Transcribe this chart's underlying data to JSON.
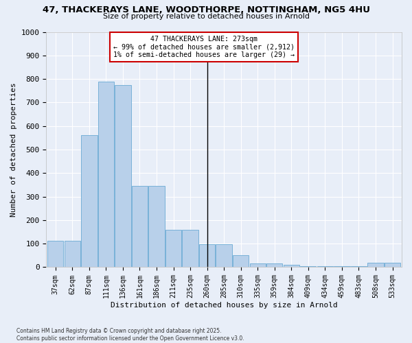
{
  "title_line1": "47, THACKERAYS LANE, WOODTHORPE, NOTTINGHAM, NG5 4HU",
  "title_line2": "Size of property relative to detached houses in Arnold",
  "xlabel": "Distribution of detached houses by size in Arnold",
  "ylabel": "Number of detached properties",
  "bar_labels": [
    "37sqm",
    "62sqm",
    "87sqm",
    "111sqm",
    "136sqm",
    "161sqm",
    "186sqm",
    "211sqm",
    "235sqm",
    "260sqm",
    "285sqm",
    "310sqm",
    "335sqm",
    "359sqm",
    "384sqm",
    "409sqm",
    "434sqm",
    "459sqm",
    "483sqm",
    "508sqm",
    "533sqm"
  ],
  "bar_values": [
    112,
    112,
    560,
    790,
    775,
    345,
    345,
    160,
    160,
    97,
    97,
    50,
    15,
    15,
    10,
    5,
    5,
    5,
    5,
    20,
    20
  ],
  "bar_color": "#b8d0ea",
  "bar_edge_color": "#6aaad4",
  "bg_color": "#e8eef8",
  "grid_color": "#ffffff",
  "vline_index": 9,
  "vline_color": "#000000",
  "annotation_text": "47 THACKERAYS LANE: 273sqm\n← 99% of detached houses are smaller (2,912)\n1% of semi-detached houses are larger (29) →",
  "annotation_box_color": "#ffffff",
  "annotation_box_edge": "#cc0000",
  "ylim": [
    0,
    1000
  ],
  "yticks": [
    0,
    100,
    200,
    300,
    400,
    500,
    600,
    700,
    800,
    900,
    1000
  ],
  "fig_bg": "#e8eef8",
  "footer_line1": "Contains HM Land Registry data © Crown copyright and database right 2025.",
  "footer_line2": "Contains public sector information licensed under the Open Government Licence v3.0."
}
